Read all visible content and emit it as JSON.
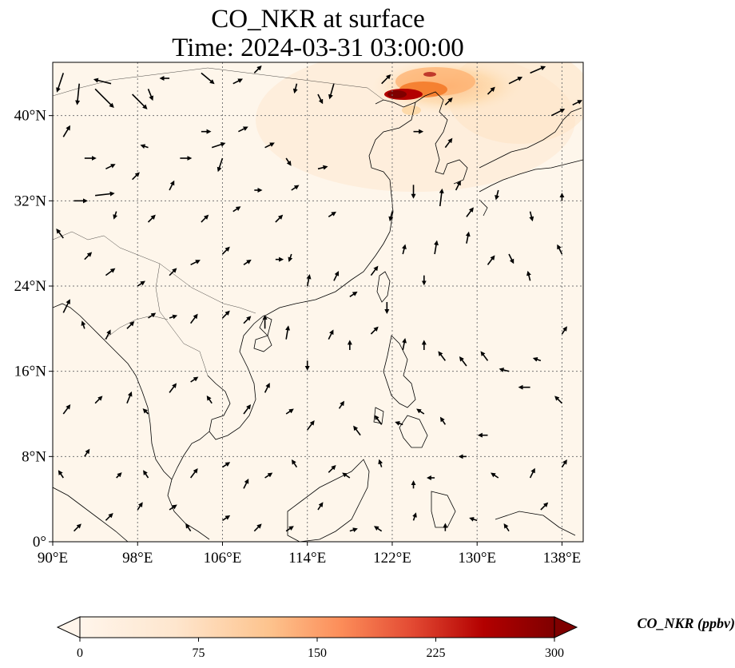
{
  "title": {
    "line1": "CO_NKR at surface",
    "line2": "Time: 2024-03-31 03:00:00"
  },
  "map": {
    "lon_range": [
      90,
      140
    ],
    "lat_range": [
      0,
      45
    ],
    "lon_ticks": [
      90,
      98,
      106,
      114,
      122,
      130,
      138
    ],
    "lon_tick_labels": [
      "90°E",
      "98°E",
      "106°E",
      "114°E",
      "122°E",
      "130°E",
      "138°E"
    ],
    "lat_ticks": [
      0,
      8,
      16,
      24,
      32,
      40
    ],
    "lat_tick_labels": [
      "0°",
      "8°N",
      "16°N",
      "24°N",
      "32°N",
      "40°N"
    ],
    "gridlines": "dotted",
    "background_color": "#fef6eb",
    "coastline_color": "#000000",
    "plume": {
      "description_color": "#8b0000",
      "center_lon": 123.8,
      "center_lat": 42.0
    }
  },
  "colorbar": {
    "label": "CO_NKR (ppbv)",
    "ticks": [
      0,
      75,
      150,
      225,
      300
    ],
    "tick_labels": [
      "0",
      "75",
      "150",
      "225",
      "300"
    ],
    "range": [
      0,
      300
    ],
    "extend": "both",
    "colormap": [
      "#fff5eb",
      "#fdd49e",
      "#fdae6b",
      "#f16913",
      "#d7301f",
      "#990000",
      "#7f0000"
    ]
  },
  "wind_vectors": [
    [
      91,
      44,
      -0.3,
      -0.9
    ],
    [
      92.5,
      43,
      -0.1,
      -1.0
    ],
    [
      94,
      42.5,
      0.9,
      -0.9
    ],
    [
      95.5,
      43,
      -0.8,
      0.2
    ],
    [
      97.5,
      42,
      0.7,
      -0.7
    ],
    [
      99,
      42.5,
      0.2,
      -0.5
    ],
    [
      101,
      43.5,
      -0.4,
      0.0
    ],
    [
      104,
      44,
      0.6,
      -0.5
    ],
    [
      107,
      43,
      0.4,
      0.2
    ],
    [
      109,
      44,
      0.3,
      0.3
    ],
    [
      113,
      43,
      -0.1,
      -0.4
    ],
    [
      115,
      42,
      0.2,
      -0.4
    ],
    [
      116.5,
      43,
      -0.2,
      -0.7
    ],
    [
      121,
      43,
      0.4,
      0.4
    ],
    [
      127,
      41,
      0.3,
      0.3
    ],
    [
      131,
      42,
      0.3,
      0.3
    ],
    [
      133,
      43,
      0.6,
      0.3
    ],
    [
      135,
      44,
      0.7,
      0.3
    ],
    [
      137,
      40,
      0.6,
      0.3
    ],
    [
      139,
      41,
      0.4,
      0.2
    ],
    [
      91,
      38,
      0.3,
      0.5
    ],
    [
      93,
      36,
      0.5,
      0.0
    ],
    [
      95,
      35,
      0.4,
      0.2
    ],
    [
      97.5,
      34,
      0.3,
      0.3
    ],
    [
      99,
      37,
      -0.3,
      0.1
    ],
    [
      102,
      36,
      0.5,
      0.0
    ],
    [
      104,
      38.5,
      0.4,
      0.0
    ],
    [
      105,
      37,
      0.6,
      0.2
    ],
    [
      106,
      36,
      -0.2,
      -0.6
    ],
    [
      107.5,
      38.5,
      0.4,
      0.2
    ],
    [
      110,
      37,
      0.4,
      0.2
    ],
    [
      112,
      36,
      0.2,
      -0.3
    ],
    [
      115,
      35,
      0.4,
      0.1
    ],
    [
      124,
      38.5,
      0.4,
      0.0
    ],
    [
      127,
      37,
      0.3,
      0.4
    ],
    [
      92,
      32,
      0.6,
      0.0
    ],
    [
      94,
      32.5,
      0.9,
      0.1
    ],
    [
      96,
      31,
      -0.1,
      -0.3
    ],
    [
      99,
      30,
      0.3,
      0.3
    ],
    [
      101,
      33,
      0.2,
      0.4
    ],
    [
      104,
      30,
      0.3,
      0.3
    ],
    [
      107,
      31,
      0.3,
      0.2
    ],
    [
      109,
      33,
      0.3,
      0.0
    ],
    [
      111,
      30,
      0.3,
      0.3
    ],
    [
      112.5,
      33,
      0.3,
      0.2
    ],
    [
      116,
      30.5,
      0.3,
      0.2
    ],
    [
      122,
      31,
      -0.1,
      -0.4
    ],
    [
      124,
      33.5,
      0.0,
      -0.6
    ],
    [
      126.5,
      31.5,
      0.1,
      0.8
    ],
    [
      128,
      33,
      0.2,
      0.4
    ],
    [
      129,
      30.5,
      0.3,
      0.4
    ],
    [
      132,
      33,
      -0.1,
      -0.4
    ],
    [
      135,
      31,
      0.1,
      -0.4
    ],
    [
      138,
      32,
      0.0,
      0.3
    ],
    [
      91,
      28.5,
      -0.3,
      0.4
    ],
    [
      93,
      26.5,
      0.3,
      0.3
    ],
    [
      95,
      25,
      0.4,
      0.3
    ],
    [
      98,
      24,
      0.3,
      0.2
    ],
    [
      101,
      25,
      0.3,
      0.3
    ],
    [
      103,
      26,
      0.4,
      0.2
    ],
    [
      106,
      27,
      0.3,
      0.3
    ],
    [
      108,
      26,
      0.3,
      0.2
    ],
    [
      111,
      26.5,
      0.3,
      0.0
    ],
    [
      112.5,
      27,
      -0.1,
      -0.3
    ],
    [
      114,
      24,
      0.1,
      0.5
    ],
    [
      116.5,
      24.5,
      0.2,
      0.4
    ],
    [
      118,
      23,
      0.3,
      0.2
    ],
    [
      120,
      25,
      0.3,
      0.4
    ],
    [
      121.5,
      22.5,
      0.0,
      -0.5
    ],
    [
      123,
      27,
      0.1,
      0.4
    ],
    [
      125,
      25,
      0.0,
      -0.4
    ],
    [
      126,
      27,
      0.1,
      0.6
    ],
    [
      129,
      28,
      0.1,
      0.5
    ],
    [
      131,
      26,
      0.3,
      0.4
    ],
    [
      133,
      27,
      0.2,
      -0.4
    ],
    [
      135,
      24.5,
      -0.1,
      0.4
    ],
    [
      138,
      27,
      -0.2,
      0.4
    ],
    [
      91,
      21.5,
      0.3,
      0.6
    ],
    [
      93,
      20,
      -0.1,
      0.3
    ],
    [
      95,
      19,
      0.2,
      0.4
    ],
    [
      97,
      20,
      0.3,
      0.3
    ],
    [
      99,
      21,
      0.3,
      0.2
    ],
    [
      101,
      21,
      0.3,
      0.1
    ],
    [
      103,
      20.5,
      0.3,
      0.4
    ],
    [
      106,
      21,
      0.3,
      0.3
    ],
    [
      108,
      20.5,
      0.3,
      0.3
    ],
    [
      110,
      20,
      0.0,
      0.6
    ],
    [
      112,
      19,
      0.1,
      0.6
    ],
    [
      114,
      17,
      0.0,
      -0.4
    ],
    [
      116,
      19,
      0.2,
      0.4
    ],
    [
      118,
      18,
      0.0,
      0.4
    ],
    [
      120,
      19.5,
      0.3,
      0.3
    ],
    [
      123,
      18,
      0.1,
      0.5
    ],
    [
      125,
      18,
      0.0,
      0.4
    ],
    [
      127,
      17,
      -0.3,
      0.4
    ],
    [
      129,
      16.5,
      -0.3,
      0.4
    ],
    [
      131,
      17,
      -0.3,
      0.4
    ],
    [
      133,
      16,
      -0.4,
      0.1
    ],
    [
      136,
      17,
      -0.3,
      0.1
    ],
    [
      138,
      19.5,
      0.2,
      0.3
    ],
    [
      91,
      12,
      0.3,
      0.4
    ],
    [
      94,
      13,
      0.3,
      0.3
    ],
    [
      97,
      13,
      0.2,
      0.5
    ],
    [
      99,
      12,
      -0.2,
      0.2
    ],
    [
      101,
      14,
      0.3,
      0.4
    ],
    [
      103,
      15,
      0.3,
      0.2
    ],
    [
      105,
      13,
      -0.2,
      0.3
    ],
    [
      108,
      12,
      0.3,
      0.4
    ],
    [
      110,
      14,
      0.2,
      0.4
    ],
    [
      112,
      12,
      0.3,
      0.2
    ],
    [
      114,
      10.5,
      0.3,
      0.4
    ],
    [
      117,
      12.5,
      0.2,
      0.3
    ],
    [
      119,
      10,
      -0.3,
      0.4
    ],
    [
      121,
      11,
      -0.3,
      0.4
    ],
    [
      123,
      11,
      -0.3,
      0.1
    ],
    [
      125,
      12,
      -0.3,
      0.2
    ],
    [
      127,
      11,
      -0.2,
      0.3
    ],
    [
      131,
      10,
      -0.4,
      0.0
    ],
    [
      135,
      14.5,
      -0.5,
      0.0
    ],
    [
      138,
      13,
      -0.3,
      0.3
    ],
    [
      91,
      6,
      -0.2,
      0.3
    ],
    [
      93,
      8,
      0.2,
      0.3
    ],
    [
      96,
      6,
      0.2,
      0.2
    ],
    [
      99,
      6,
      -0.2,
      0.3
    ],
    [
      103,
      6,
      0.3,
      0.4
    ],
    [
      106,
      7,
      0.3,
      0.2
    ],
    [
      108,
      5,
      0.2,
      0.4
    ],
    [
      110,
      6,
      0.3,
      0.2
    ],
    [
      113,
      7,
      -0.2,
      0.3
    ],
    [
      116,
      6.5,
      0.3,
      0.3
    ],
    [
      118,
      6,
      -0.3,
      0.2
    ],
    [
      121,
      7,
      -0.1,
      0.3
    ],
    [
      124,
      5,
      0.0,
      0.3
    ],
    [
      126,
      6,
      -0.3,
      0.0
    ],
    [
      129,
      8,
      -0.3,
      0.0
    ],
    [
      132,
      6,
      -0.3,
      0.2
    ],
    [
      135,
      6,
      0.2,
      0.4
    ],
    [
      138,
      7,
      0.2,
      0.3
    ],
    [
      92,
      1,
      0.3,
      0.3
    ],
    [
      95,
      2,
      0.3,
      0.3
    ],
    [
      98,
      3,
      0.2,
      0.3
    ],
    [
      101,
      3,
      0.3,
      0.2
    ],
    [
      103,
      1,
      -0.2,
      0.3
    ],
    [
      106,
      2,
      0.3,
      0.2
    ],
    [
      109,
      1,
      0.3,
      0.3
    ],
    [
      112,
      1,
      0.3,
      0.2
    ],
    [
      115,
      3,
      0.2,
      0.3
    ],
    [
      118,
      1,
      0.3,
      0.1
    ],
    [
      121,
      1,
      -0.3,
      0.2
    ],
    [
      124,
      2,
      0.1,
      0.3
    ],
    [
      127,
      1,
      0.0,
      0.3
    ],
    [
      130,
      2,
      -0.3,
      0.1
    ],
    [
      133,
      1,
      -0.2,
      0.3
    ],
    [
      136,
      3,
      0.3,
      0.3
    ]
  ]
}
